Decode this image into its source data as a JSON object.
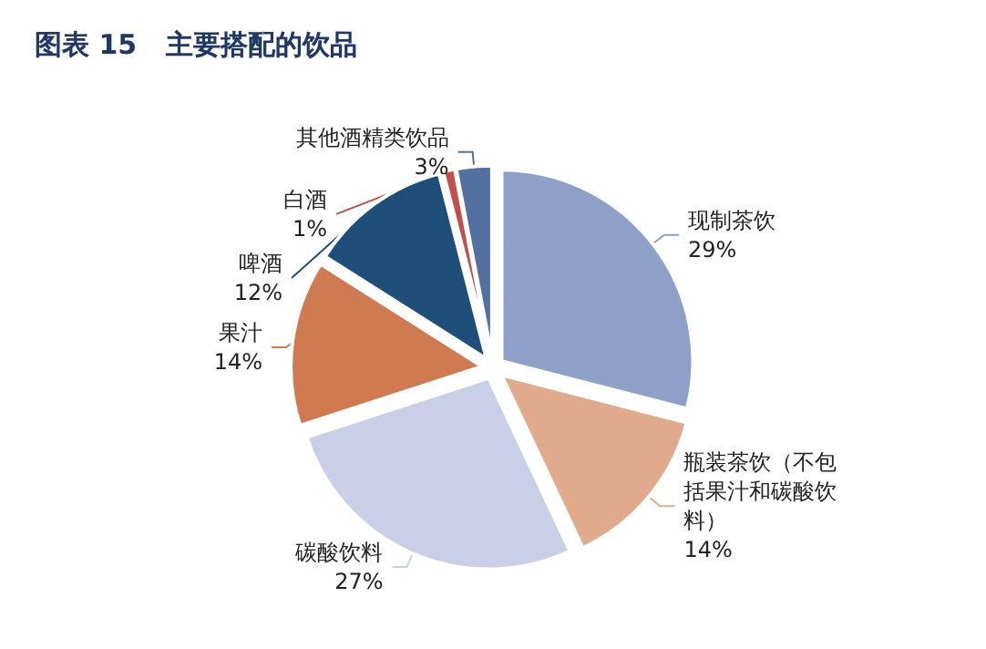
{
  "chart_data": {
    "type": "pie",
    "title": "图表 15   主要搭配的饮品",
    "categories": [
      "现制茶饮",
      "瓶装茶饮（不包括果汁和碳酸饮料）",
      "碳酸饮料",
      "果汁",
      "啤酒",
      "白酒",
      "其他酒精类饮品"
    ],
    "values": [
      29,
      14,
      27,
      14,
      12,
      1,
      3
    ],
    "colors": [
      "#8fa0c8",
      "#e0ab8c",
      "#c9cfe6",
      "#d07a52",
      "#1f4e7a",
      "#c0504d",
      "#5470a0"
    ],
    "value_labels": [
      "29%",
      "14%",
      "27%",
      "14%",
      "12%",
      "1%",
      "3%"
    ],
    "legend": false
  }
}
